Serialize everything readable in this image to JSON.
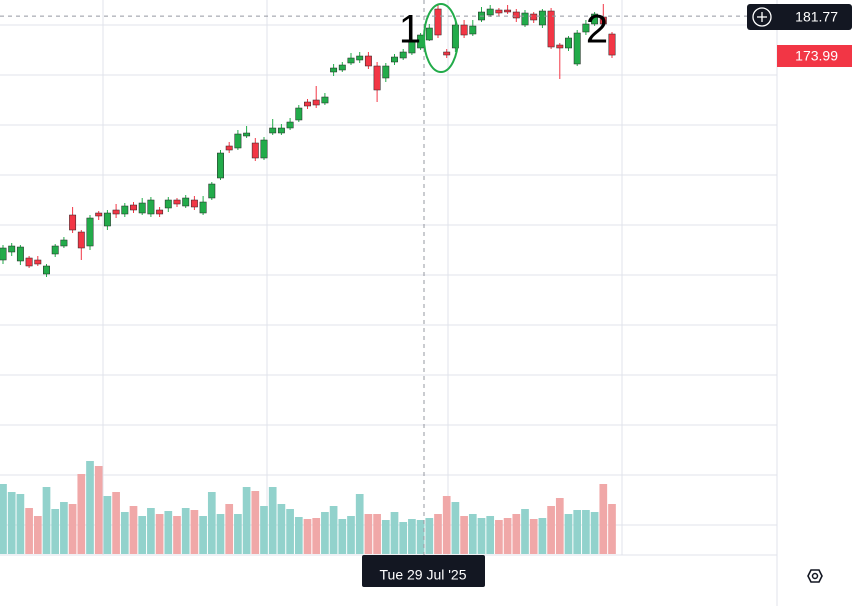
{
  "chart_data": {
    "type": "candlestick",
    "open": [
      133,
      134.6,
      132.8,
      133.4,
      133,
      130.2,
      134.2,
      135.8,
      142,
      138.6,
      135.8,
      142.4,
      139.8,
      143,
      142.2,
      144,
      142.4,
      142.2,
      143,
      143.4,
      145,
      143.8,
      145,
      142.4,
      145.4,
      149.4,
      155.8,
      155.4,
      157.8,
      156.4,
      153.4,
      158.4,
      158.4,
      159.4,
      161,
      164.6,
      165,
      164.4,
      170.6,
      171,
      172.4,
      173,
      173.8,
      171.8,
      169.4,
      172.6,
      173.4,
      174.4,
      175.4,
      177,
      183.2,
      174.6,
      175.4,
      180,
      178.2,
      181,
      182,
      183,
      183,
      182.6,
      180,
      182.2,
      180,
      182.8,
      176,
      175.4,
      172.2,
      178.6,
      180.2,
      181.6,
      178.2
    ],
    "high": [
      136,
      136.4,
      136,
      133.8,
      133.8,
      132.2,
      136.2,
      137.6,
      143.6,
      139,
      142,
      142.8,
      143,
      144.2,
      144.4,
      144.6,
      145.4,
      145.6,
      143.6,
      145.6,
      145.4,
      146,
      145.8,
      145.8,
      148.6,
      155,
      156.6,
      159,
      159.8,
      157.4,
      157.6,
      161.2,
      160.2,
      161.4,
      164,
      165.2,
      167.8,
      166.4,
      172.2,
      172.6,
      174.4,
      174.6,
      174.6,
      172.6,
      172.4,
      174.2,
      175.2,
      177.4,
      178.4,
      180.2,
      184,
      175.2,
      181,
      181,
      181,
      183.6,
      184,
      183.4,
      184,
      183.2,
      183,
      182.6,
      183.2,
      183.4,
      176.4,
      177.8,
      179,
      181,
      182.6,
      184.2,
      178.6
    ],
    "low": [
      132.2,
      133.8,
      132,
      131.4,
      131.8,
      129.6,
      133.6,
      135.4,
      138.4,
      133,
      135,
      141,
      139,
      141.4,
      141.6,
      142.4,
      142,
      141.6,
      141.6,
      142.6,
      143.6,
      143.4,
      143,
      142,
      145,
      149,
      154.4,
      155,
      157.4,
      152.8,
      153,
      158,
      158,
      159,
      160.6,
      163.2,
      163.4,
      164,
      169.8,
      170.6,
      172,
      172.4,
      171.2,
      164.6,
      168.6,
      172,
      173,
      174,
      175,
      176.8,
      177.4,
      173.4,
      174.6,
      177.4,
      177.8,
      180.6,
      181.6,
      181.8,
      182.2,
      180.6,
      179.6,
      180.4,
      179.4,
      175.2,
      169.2,
      174.8,
      171.8,
      178,
      179.8,
      179.6,
      173.4
    ],
    "close": [
      135.4,
      135.8,
      135.6,
      131.8,
      132.2,
      131.8,
      135.8,
      137,
      139,
      135.4,
      141.4,
      141.8,
      142.4,
      142.2,
      143.8,
      143,
      144.4,
      145,
      142.2,
      145,
      144.2,
      145.4,
      143.6,
      144.6,
      148.2,
      154.4,
      155,
      158.2,
      158.4,
      153.4,
      157,
      159.4,
      159.4,
      160.6,
      163.4,
      163.8,
      164,
      165.6,
      171.4,
      172,
      173.4,
      173.8,
      171.8,
      167,
      171.8,
      173.6,
      174.6,
      177,
      178,
      179.4,
      178,
      174,
      180,
      178,
      179.8,
      182.6,
      183.2,
      182.4,
      182.6,
      181.4,
      182.4,
      181,
      182.8,
      175.6,
      175.4,
      177.4,
      178.4,
      180.2,
      182.2,
      180.2,
      173.99
    ],
    "volume": [
      70,
      62,
      60,
      46,
      38,
      67,
      45,
      52,
      50,
      80,
      93,
      88,
      58,
      62,
      42,
      48,
      38,
      46,
      40,
      43,
      38,
      46,
      44,
      38,
      62,
      40,
      50,
      40,
      67,
      63,
      48,
      67,
      50,
      45,
      37,
      35,
      36,
      42,
      48,
      35,
      38,
      60,
      40,
      40,
      34,
      42,
      32,
      35,
      34,
      36,
      40,
      58,
      52,
      38,
      40,
      36,
      38,
      34,
      36,
      40,
      45,
      35,
      36,
      48,
      56,
      40,
      44,
      44,
      42,
      70,
      50
    ],
    "ylim": [
      74.2,
      185
    ],
    "volume_lim": [
      0,
      100
    ],
    "up_color": "#22ab4a",
    "down_color": "#f23645",
    "up_volume_color": "#92d2cc",
    "down_volume_color": "#f0a8a8",
    "crosshair_price": 181.77,
    "crosshair_date": "Tue 29 Jul '25",
    "annotations": [
      "1",
      "2"
    ]
  }
}
